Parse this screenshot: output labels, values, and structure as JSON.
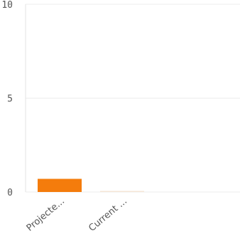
{
  "chart_data": {
    "type": "bar",
    "title": "",
    "xlabel": "",
    "ylabel": "",
    "categories": [
      "Projecte...",
      "Current ..."
    ],
    "values": [
      0.7,
      0.03
    ],
    "ylim": [
      0,
      10
    ],
    "yticks": [
      {
        "value": 0,
        "label": "0"
      },
      {
        "value": 5,
        "label": "5"
      },
      {
        "value": 10,
        "label": "10"
      }
    ],
    "grid": "horizontal",
    "legend": "none",
    "bar_color": "#f47c0c",
    "faint_bar_color": "#f5e6d6"
  }
}
